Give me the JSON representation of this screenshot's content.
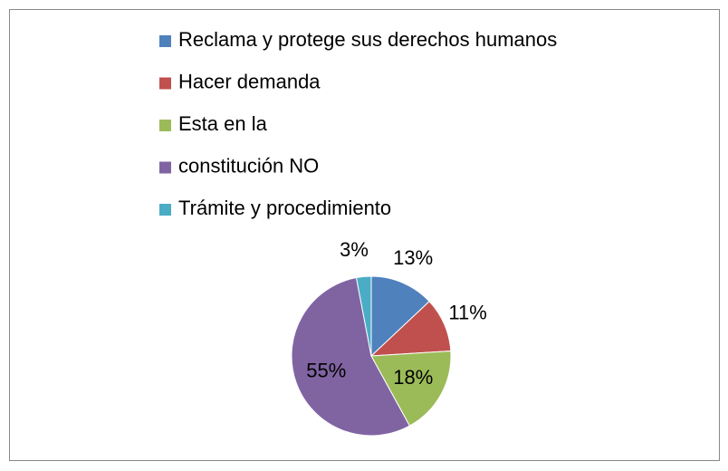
{
  "chart_data": {
    "type": "pie",
    "categories": [
      "Reclama y protege sus derechos humanos",
      "Hacer demanda",
      "Esta en la",
      "constitución NO",
      "Trámite y procedimiento"
    ],
    "values": [
      13,
      11,
      18,
      55,
      3
    ],
    "value_labels": [
      "13%",
      "11%",
      "18%",
      "55%",
      "3%"
    ],
    "colors": [
      "#4f81bd",
      "#c0504d",
      "#9bbb59",
      "#8064a2",
      "#4bacc6"
    ],
    "legend": "top"
  }
}
